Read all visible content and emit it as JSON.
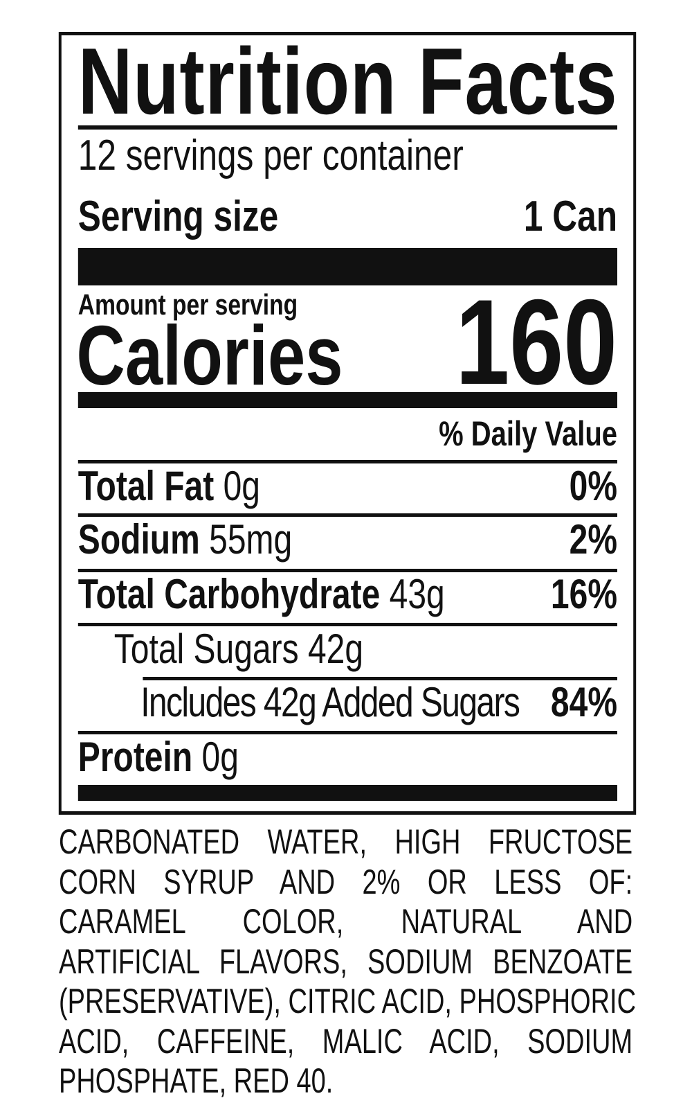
{
  "label": {
    "title": "Nutrition Facts",
    "servings_per_container": "12 servings per container",
    "serving_size_label": "Serving size",
    "serving_size_value": "1 Can",
    "amount_per_serving": "Amount per serving",
    "calories_label": "Calories",
    "calories_value": "160",
    "daily_value_header": "% Daily Value",
    "nutrients": [
      {
        "name": "Total Fat",
        "amount": "0g",
        "dv": "0%"
      },
      {
        "name": "Sodium",
        "amount": "55mg",
        "dv": "2%"
      },
      {
        "name": "Total Carbohydrate",
        "amount": "43g",
        "dv": "16%"
      },
      {
        "name": "Total Sugars 42g",
        "amount": "",
        "dv": ""
      },
      {
        "name": "Includes 42g Added Sugars",
        "amount": "",
        "dv": "84%"
      },
      {
        "name": "Protein",
        "amount": "0g",
        "dv": ""
      }
    ]
  },
  "ingredients": [
    "CARBONATED WATER, HIGH FRUCTOSE",
    "CORN SYRUP AND 2% OR LESS OF:",
    "CARAMEL COLOR, NATURAL AND",
    "ARTIFICIAL FLAVORS, SODIUM BENZOATE",
    "(PRESERVATIVE), CITRIC ACID, PHOSPHORIC",
    "ACID, CAFFEINE, MALIC ACID, SODIUM",
    "PHOSPHATE, RED 40."
  ]
}
